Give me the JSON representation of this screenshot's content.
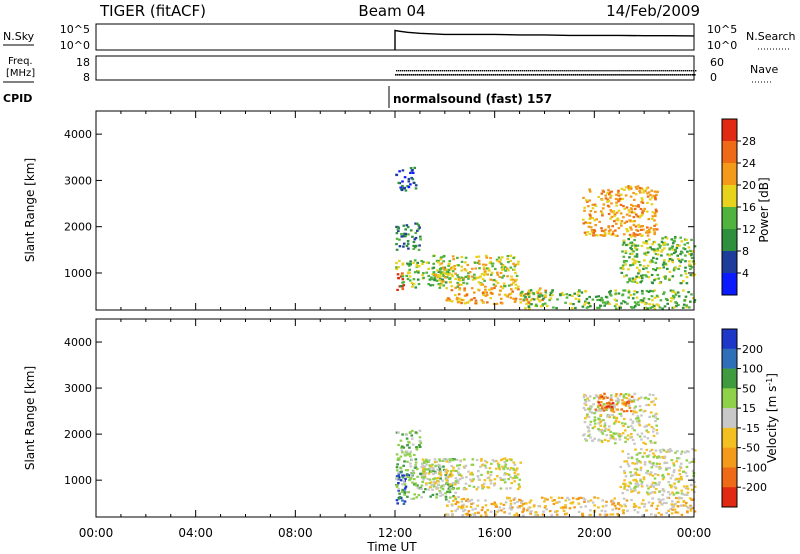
{
  "header": {
    "title": "TIGER (fitACF)",
    "beam": "Beam 04",
    "date": "14/Feb/2009"
  },
  "side_labels": {
    "nsky": "N.Sky",
    "nsearch": "N.Search",
    "freq_top": "Freq.",
    "freq_unit": "[MHz]",
    "nave": "Nave",
    "cpid": "CPID",
    "cpid_value": "normalsound (fast) 157"
  },
  "chart_data": [
    {
      "type": "line",
      "id": "noise-panel",
      "yticks_left": [
        "10^5",
        "10^0"
      ],
      "yticks_right": [
        "10^5",
        "10^0"
      ],
      "series": [
        {
          "name": "N.Sky",
          "x_hours": [
            12.0,
            12.2,
            12.5,
            13.0,
            14.0,
            15.0,
            16.0,
            17.0,
            18.0,
            19.0,
            20.0,
            21.0,
            22.0,
            23.0,
            24.0
          ],
          "values": [
            0.75,
            0.72,
            0.68,
            0.64,
            0.6,
            0.6,
            0.6,
            0.58,
            0.58,
            0.56,
            0.56,
            0.56,
            0.55,
            0.55,
            0.54
          ]
        }
      ]
    },
    {
      "type": "scatter",
      "id": "freq-nave-panel",
      "yticks_left": [
        "18",
        "8"
      ],
      "yticks_right": [
        "60",
        "0"
      ],
      "series": [
        {
          "name": "Freq.",
          "x_range_hours": [
            12.0,
            24.0
          ],
          "value": 10.5
        },
        {
          "name": "Nave",
          "x_range_hours": [
            12.0,
            24.0
          ],
          "value": 25
        }
      ]
    },
    {
      "type": "heatmap",
      "id": "power-panel",
      "ylabel": "Slant Range [km]",
      "yticks": [
        1000,
        2000,
        3000,
        4000
      ],
      "ylim": [
        200,
        4500
      ],
      "colorbar": {
        "label": "Power [dB]",
        "ticks": [
          4,
          8,
          12,
          16,
          20,
          24,
          28
        ],
        "colors": [
          "#0a1cff",
          "#1e3c9a",
          "#2e8f3c",
          "#4fb33d",
          "#e7d21c",
          "#f39a1a",
          "#ee6a16",
          "#e02a12"
        ]
      },
      "regions": [
        {
          "t": [
            12.0,
            12.3
          ],
          "r": [
            600,
            1100
          ],
          "level": 7
        },
        {
          "t": [
            12.0,
            14.2
          ],
          "r": [
            700,
            1300
          ],
          "level": 3
        },
        {
          "t": [
            12.0,
            13.0
          ],
          "r": [
            1500,
            2100
          ],
          "level": 2
        },
        {
          "t": [
            12.0,
            12.8
          ],
          "r": [
            2800,
            3300
          ],
          "level": 1
        },
        {
          "t": [
            13.5,
            17.0
          ],
          "r": [
            700,
            1400
          ],
          "level": 4
        },
        {
          "t": [
            14.0,
            18.0
          ],
          "r": [
            350,
            700
          ],
          "level": 5
        },
        {
          "t": [
            17.0,
            24.0
          ],
          "r": [
            250,
            650
          ],
          "level": 3
        },
        {
          "t": [
            19.5,
            22.5
          ],
          "r": [
            1800,
            2900
          ],
          "level": 5
        },
        {
          "t": [
            21.0,
            24.0
          ],
          "r": [
            800,
            1800
          ],
          "level": 3
        }
      ]
    },
    {
      "type": "heatmap",
      "id": "velocity-panel",
      "ylabel": "Slant Range [km]",
      "yticks": [
        1000,
        2000,
        3000,
        4000
      ],
      "ylim": [
        200,
        4500
      ],
      "colorbar": {
        "label": "Velocity [m s^-1]",
        "ticks": [
          200,
          100,
          50,
          15,
          -15,
          -50,
          -100,
          -200
        ],
        "colors": [
          "#1d37c8",
          "#2f6fb8",
          "#3f9a40",
          "#8fd24a",
          "#c8c8c8",
          "#f2c020",
          "#f39a1a",
          "#ee6a16",
          "#e02a12"
        ]
      },
      "regions": [
        {
          "t": [
            12.0,
            12.5
          ],
          "r": [
            500,
            1200
          ],
          "level": 0
        },
        {
          "t": [
            12.0,
            14.5
          ],
          "r": [
            600,
            1500
          ],
          "level": 3
        },
        {
          "t": [
            12.0,
            13.0
          ],
          "r": [
            1500,
            2100
          ],
          "level": 3
        },
        {
          "t": [
            13.0,
            17.0
          ],
          "r": [
            800,
            1500
          ],
          "level": 4
        },
        {
          "t": [
            14.0,
            24.0
          ],
          "r": [
            250,
            650
          ],
          "level": 5
        },
        {
          "t": [
            19.5,
            22.5
          ],
          "r": [
            1800,
            2900
          ],
          "level": 4
        },
        {
          "t": [
            20.0,
            21.5
          ],
          "r": [
            2500,
            2900
          ],
          "level": 7
        },
        {
          "t": [
            21.0,
            24.0
          ],
          "r": [
            700,
            1700
          ],
          "level": 4
        }
      ]
    }
  ],
  "time_axis": {
    "label": "Time UT",
    "tick_labels": [
      "00:00",
      "04:00",
      "08:00",
      "12:00",
      "16:00",
      "20:00",
      "00:00"
    ],
    "tick_hours": [
      0,
      4,
      8,
      12,
      16,
      20,
      24
    ]
  }
}
